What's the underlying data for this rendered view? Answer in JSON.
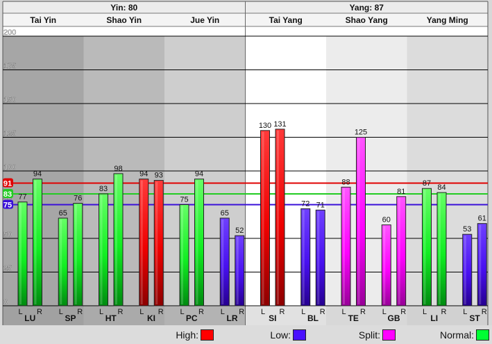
{
  "chart_data": {
    "type": "bar",
    "ylim": [
      0,
      200
    ],
    "yticks": [
      0,
      25,
      50,
      75,
      100,
      125,
      150,
      175,
      200
    ],
    "groups": [
      {
        "label": "Yin: 80",
        "meridians": [
          {
            "label": "Tai Yin",
            "shade": "#a6a6a6",
            "organs": [
              {
                "name": "LU",
                "L": 77,
                "R": 94,
                "L_status": "normal",
                "R_status": "normal"
              },
              {
                "name": "SP",
                "L": 65,
                "R": 76,
                "L_status": "normal",
                "R_status": "normal"
              }
            ]
          },
          {
            "label": "Shao Yin",
            "shade": "#bababa",
            "organs": [
              {
                "name": "HT",
                "L": 83,
                "R": 98,
                "L_status": "normal",
                "R_status": "normal"
              },
              {
                "name": "KI",
                "L": 94,
                "R": 93,
                "L_status": "high",
                "R_status": "high"
              }
            ]
          },
          {
            "label": "Jue Yin",
            "shade": "#cecece",
            "organs": [
              {
                "name": "PC",
                "L": 75,
                "R": 94,
                "L_status": "normal",
                "R_status": "normal"
              },
              {
                "name": "LR",
                "L": 65,
                "R": 52,
                "L_status": "low",
                "R_status": "low"
              }
            ]
          }
        ]
      },
      {
        "label": "Yang: 87",
        "meridians": [
          {
            "label": "Tai Yang",
            "shade": "#ffffff",
            "organs": [
              {
                "name": "SI",
                "L": 130,
                "R": 131,
                "L_status": "high",
                "R_status": "high"
              },
              {
                "name": "BL",
                "L": 72,
                "R": 71,
                "L_status": "low",
                "R_status": "low"
              }
            ]
          },
          {
            "label": "Shao Yang",
            "shade": "#ececec",
            "organs": [
              {
                "name": "TE",
                "L": 88,
                "R": 125,
                "L_status": "split",
                "R_status": "split"
              },
              {
                "name": "GB",
                "L": 60,
                "R": 81,
                "L_status": "split",
                "R_status": "split"
              }
            ]
          },
          {
            "label": "Yang Ming",
            "shade": "#dcdcdc",
            "organs": [
              {
                "name": "LI",
                "L": 87,
                "R": 84,
                "L_status": "normal",
                "R_status": "normal"
              },
              {
                "name": "ST",
                "L": 53,
                "R": 61,
                "L_status": "low",
                "R_status": "low"
              }
            ]
          }
        ]
      }
    ],
    "reference_lines": [
      {
        "value": 91,
        "label": "91",
        "color": "#e00000"
      },
      {
        "value": 83,
        "label": "83",
        "color": "#22cc22"
      },
      {
        "value": 75,
        "label": "75",
        "color": "#3a10d8"
      }
    ],
    "side_labels": [
      "L",
      "R"
    ],
    "legend": [
      {
        "label": "High:",
        "color": "#ff0000"
      },
      {
        "label": "Low:",
        "color": "#4a10ff"
      },
      {
        "label": "Split:",
        "color": "#ff00ff"
      },
      {
        "label": "Normal:",
        "color": "#00ff33"
      }
    ],
    "status_colors": {
      "high": {
        "top": "#ff3a3a",
        "mid": "#ee0000",
        "bottom": "#8c0000"
      },
      "low": {
        "top": "#6f40ff",
        "mid": "#4810f0",
        "bottom": "#260090"
      },
      "split": {
        "top": "#ff55ff",
        "mid": "#ff00ff",
        "bottom": "#980098"
      },
      "normal": {
        "top": "#66ff66",
        "mid": "#11ee22",
        "bottom": "#008a10"
      }
    }
  }
}
